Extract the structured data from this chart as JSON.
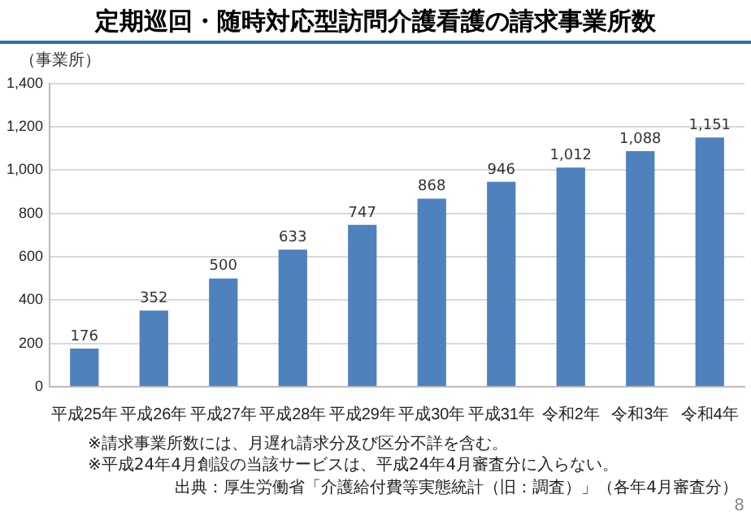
{
  "chart_data": {
    "type": "bar",
    "title": "定期巡回・随時対応型訪問介護看護の請求事業所数",
    "ylabel": "（事業所）",
    "categories": [
      "平成25年",
      "平成26年",
      "平成27年",
      "平成28年",
      "平成29年",
      "平成30年",
      "平成31年",
      "令和2年",
      "令和3年",
      "令和4年"
    ],
    "values": [
      176,
      352,
      500,
      633,
      747,
      868,
      946,
      1012,
      1088,
      1151
    ],
    "value_labels": [
      "176",
      "352",
      "500",
      "633",
      "747",
      "868",
      "946",
      "1,012",
      "1,088",
      "1,151"
    ],
    "color": "#4f81bd",
    "ylim": [
      0,
      1400
    ],
    "yticks": [
      0,
      {
        "value": 200,
        "label": "200"
      },
      {
        "value": 400,
        "label": "400"
      },
      {
        "value": 600,
        "label": "600"
      },
      {
        "value": 800,
        "label": "800"
      },
      {
        "value": 1000,
        "label": "1,000"
      },
      {
        "value": 1200,
        "label": "1,200"
      },
      {
        "value": 1400,
        "label": "1,400"
      }
    ],
    "grid": "y",
    "annotations": [
      "※請求事業所数には、月遅れ請求分及び区分不詳を含む。",
      "※平成24年4月創設の当該サービスは、平成24年4月審査分に入らない。",
      "出典：厚生労働省「介護給付費等実態統計（旧：調査）」（各年4月審査分）",
      "8"
    ]
  }
}
